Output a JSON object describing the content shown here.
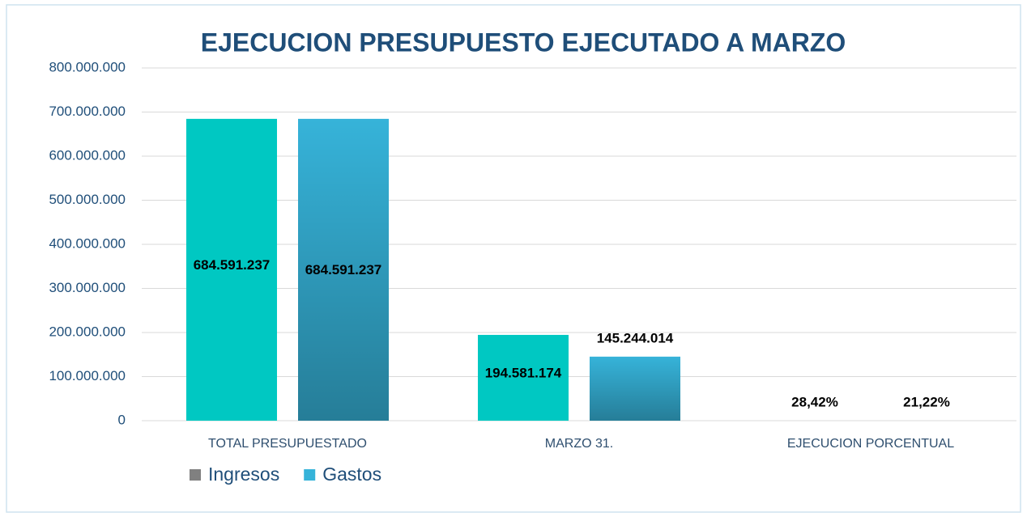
{
  "chart_data": {
    "type": "bar",
    "title": "EJECUCION PRESUPUESTO EJECUTADO A MARZO",
    "categories": [
      "TOTAL PRESUPUESTADO",
      "MARZO 31.",
      "EJECUCION PORCENTUAL"
    ],
    "series": [
      {
        "name": "Ingresos",
        "color": "#00c8c2",
        "legend_color": "#808080",
        "values": [
          684591237,
          194581174,
          28.42
        ],
        "value_labels": [
          "684.591.237",
          "194.581.174",
          "28,42%"
        ]
      },
      {
        "name": "Gastos",
        "color": "#36b3d9",
        "legend_color": "#36b3d9",
        "gradient": true,
        "values": [
          684591237,
          145244014,
          21.22
        ],
        "value_labels": [
          "684.591.237",
          "145.244.014",
          "21,22%"
        ]
      }
    ],
    "ylim": [
      0,
      800000000
    ],
    "yticks": [
      0,
      {
        "value": 100000000,
        "label": "100.000.000"
      },
      {
        "value": 200000000,
        "label": "200.000.000"
      },
      {
        "value": 300000000,
        "label": "300.000.000"
      },
      {
        "value": 400000000,
        "label": "400.000.000"
      },
      {
        "value": 500000000,
        "label": "500.000.000"
      },
      {
        "value": 600000000,
        "label": "600.000.000"
      },
      {
        "value": 700000000,
        "label": "700.000.000"
      },
      {
        "value": 800000000,
        "label": "800.000.000"
      }
    ],
    "grid": true,
    "legend": "bottom-left"
  }
}
